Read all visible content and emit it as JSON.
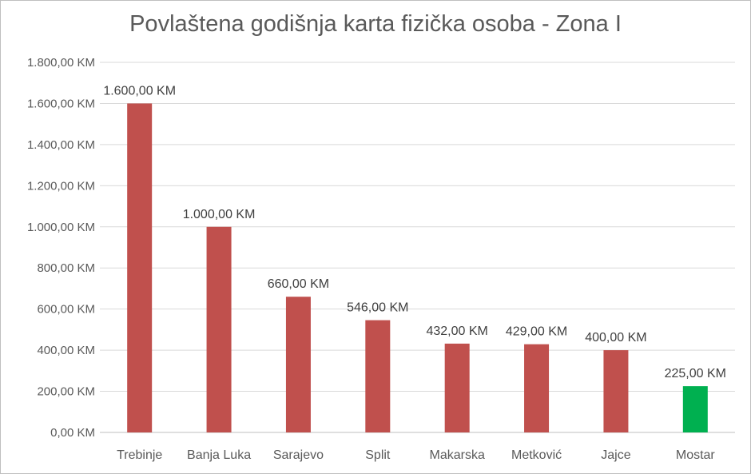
{
  "chart_data": {
    "type": "bar",
    "title": "Povlaštena godišnja karta fizička osoba - Zona I",
    "categories": [
      "Trebinje",
      "Banja Luka",
      "Sarajevo",
      "Split",
      "Makarska",
      "Metković",
      "Jajce",
      "Mostar"
    ],
    "values": [
      1600,
      1000,
      660,
      546,
      432,
      429,
      400,
      225
    ],
    "data_labels": [
      "1.600,00 KM",
      "1.000,00 KM",
      "660,00 KM",
      "546,00 KM",
      "432,00 KM",
      "429,00 KM",
      "400,00 KM",
      "225,00 KM"
    ],
    "bar_colors": [
      "#c0504d",
      "#c0504d",
      "#c0504d",
      "#c0504d",
      "#c0504d",
      "#c0504d",
      "#c0504d",
      "#00b050"
    ],
    "ylim": [
      0,
      1800
    ],
    "yticks": [
      0,
      200,
      400,
      600,
      800,
      1000,
      1200,
      1400,
      1600,
      1800
    ],
    "ytick_labels": [
      "0,00 KM",
      "200,00 KM",
      "400,00 KM",
      "600,00 KM",
      "800,00 KM",
      "1.000,00 KM",
      "1.200,00 KM",
      "1.400,00 KM",
      "1.600,00 KM",
      "1.800,00 KM"
    ],
    "xlabel": "",
    "ylabel": "",
    "grid": true,
    "gridline_color": "#d9d9d9"
  }
}
